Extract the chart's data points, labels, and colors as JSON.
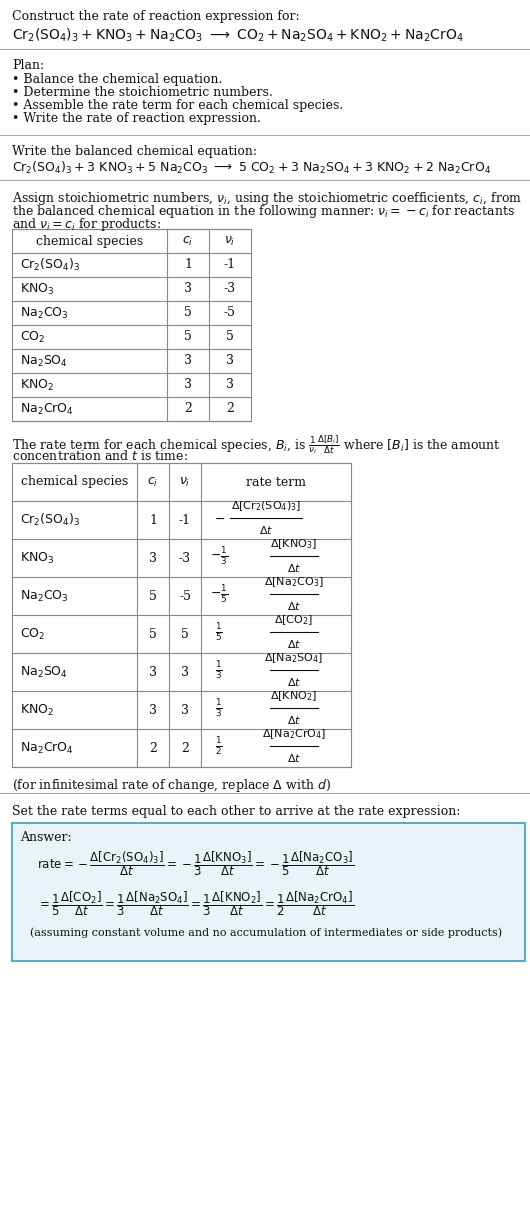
{
  "bg_color": "#ffffff",
  "text_color": "#111111",
  "lm": 12,
  "fs": 9,
  "family": "DejaVu Serif",
  "plan_items": [
    "• Balance the chemical equation.",
    "• Determine the stoichiometric numbers.",
    "• Assemble the rate term for each chemical species.",
    "• Write the rate of reaction expression."
  ],
  "chem_formulas": [
    "$\\mathrm{Cr_2(SO_4)_3}$",
    "$\\mathrm{KNO_3}$",
    "$\\mathrm{Na_2CO_3}$",
    "$\\mathrm{CO_2}$",
    "$\\mathrm{Na_2SO_4}$",
    "$\\mathrm{KNO_2}$",
    "$\\mathrm{Na_2CrO_4}$"
  ],
  "ci_vals": [
    "1",
    "3",
    "5",
    "5",
    "3",
    "3",
    "2"
  ],
  "vi_vals": [
    "-1",
    "-3",
    "-5",
    "5",
    "3",
    "3",
    "2"
  ],
  "answer_bg": "#e8f4f8",
  "answer_border": "#5aaccc"
}
